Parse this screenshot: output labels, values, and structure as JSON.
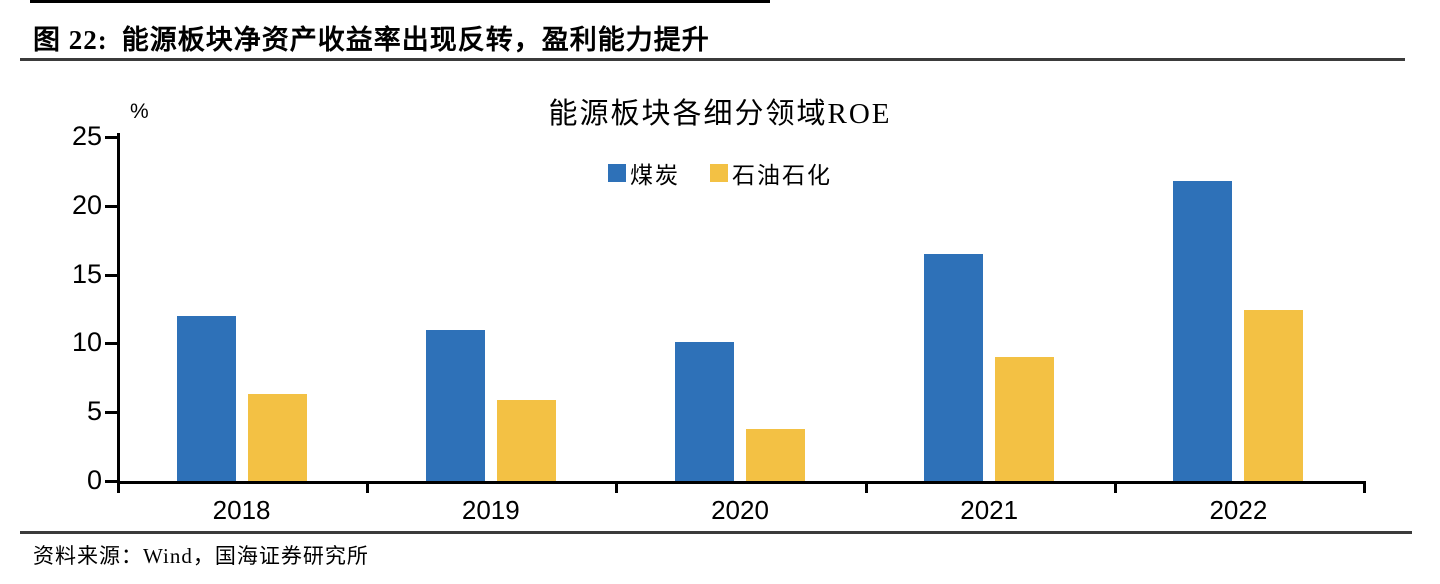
{
  "colors": {
    "coal_blue": "#2E71B8",
    "oil_yellow": "#F3C144",
    "axis_black": "#000000",
    "rule_gray": "#3b3b3b"
  },
  "header": {
    "figure_label": "图 22:",
    "figure_title": "能源板块净资产收益率出现反转，盈利能力提升"
  },
  "footer": {
    "source": "资料来源：Wind，国海证券研究所"
  },
  "chart_data": {
    "type": "bar",
    "title": "能源板块各细分领域ROE",
    "ylabel": "%",
    "xlabel": "",
    "categories": [
      "2018",
      "2019",
      "2020",
      "2021",
      "2022"
    ],
    "series": [
      {
        "name": "煤炭",
        "color": "#2E71B8",
        "values": [
          12.0,
          11.0,
          10.1,
          16.5,
          21.8
        ]
      },
      {
        "name": "石油石化",
        "color": "#F3C144",
        "values": [
          6.3,
          5.9,
          3.8,
          9.0,
          12.4
        ]
      }
    ],
    "ylim": [
      0,
      25
    ],
    "yticks": [
      0,
      5,
      10,
      15,
      20,
      25
    ],
    "legend_position": "top-center",
    "grid": false
  }
}
